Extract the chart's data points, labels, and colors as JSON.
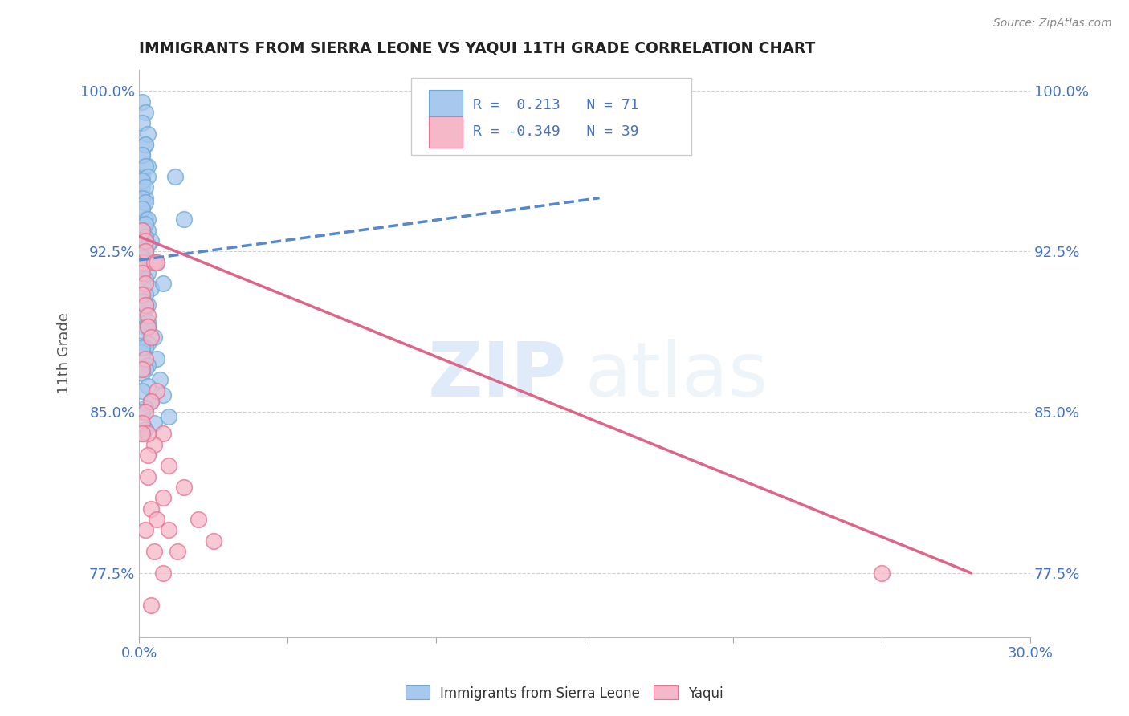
{
  "title": "IMMIGRANTS FROM SIERRA LEONE VS YAQUI 11TH GRADE CORRELATION CHART",
  "source": "Source: ZipAtlas.com",
  "ylabel": "11th Grade",
  "xlim": [
    0.0,
    0.3
  ],
  "ylim": [
    0.745,
    1.01
  ],
  "xticks": [
    0.0,
    0.05,
    0.1,
    0.15,
    0.2,
    0.25,
    0.3
  ],
  "xticklabels_show": [
    "0.0%",
    "",
    "",
    "",
    "",
    "",
    "30.0%"
  ],
  "yticks": [
    0.775,
    0.85,
    0.925,
    1.0
  ],
  "yticklabels": [
    "77.5%",
    "85.0%",
    "92.5%",
    "100.0%"
  ],
  "blue_color": "#a8c8ee",
  "blue_edge_color": "#6aaad4",
  "pink_color": "#f5b8c8",
  "pink_edge_color": "#e87090",
  "blue_line_color": "#5588cc",
  "pink_line_color": "#dd6688",
  "legend_R_blue": " 0.213",
  "legend_N_blue": "71",
  "legend_R_pink": "-0.349",
  "legend_N_pink": "39",
  "legend_label_blue": "Immigrants from Sierra Leone",
  "legend_label_pink": "Yaqui",
  "watermark_zip": "ZIP",
  "watermark_atlas": "atlas",
  "axis_color": "#4472c4",
  "grid_color": "#cccccc",
  "title_color": "#222222",
  "blue_scatter_x": [
    0.001,
    0.002,
    0.001,
    0.003,
    0.001,
    0.002,
    0.001,
    0.002,
    0.003,
    0.004,
    0.001,
    0.002,
    0.001,
    0.003,
    0.002,
    0.001,
    0.002,
    0.003,
    0.001,
    0.002,
    0.001,
    0.002,
    0.001,
    0.003,
    0.002,
    0.001,
    0.002,
    0.001,
    0.003,
    0.002,
    0.001,
    0.002,
    0.001,
    0.003,
    0.002,
    0.001,
    0.004,
    0.002,
    0.001,
    0.003,
    0.002,
    0.001,
    0.003,
    0.002,
    0.001,
    0.005,
    0.003,
    0.002,
    0.001,
    0.006,
    0.003,
    0.002,
    0.001,
    0.007,
    0.003,
    0.001,
    0.008,
    0.004,
    0.002,
    0.001,
    0.01,
    0.005,
    0.002,
    0.001,
    0.012,
    0.006,
    0.002,
    0.001,
    0.015,
    0.008,
    0.003
  ],
  "blue_scatter_y": [
    0.97,
    0.975,
    0.96,
    0.965,
    0.955,
    0.95,
    0.945,
    0.94,
    0.935,
    0.93,
    0.995,
    0.99,
    0.985,
    0.98,
    0.975,
    0.97,
    0.965,
    0.96,
    0.958,
    0.955,
    0.95,
    0.948,
    0.945,
    0.94,
    0.938,
    0.935,
    0.932,
    0.93,
    0.928,
    0.925,
    0.922,
    0.92,
    0.918,
    0.915,
    0.912,
    0.91,
    0.908,
    0.905,
    0.902,
    0.9,
    0.898,
    0.895,
    0.892,
    0.89,
    0.888,
    0.885,
    0.882,
    0.88,
    0.878,
    0.875,
    0.872,
    0.87,
    0.868,
    0.865,
    0.862,
    0.86,
    0.858,
    0.855,
    0.852,
    0.85,
    0.848,
    0.845,
    0.842,
    0.84,
    0.96,
    0.92,
    0.9,
    0.88,
    0.94,
    0.91,
    0.89
  ],
  "pink_scatter_x": [
    0.001,
    0.002,
    0.001,
    0.002,
    0.001,
    0.002,
    0.001,
    0.002,
    0.003,
    0.003,
    0.004,
    0.005,
    0.002,
    0.001,
    0.006,
    0.004,
    0.002,
    0.001,
    0.008,
    0.005,
    0.003,
    0.01,
    0.006,
    0.003,
    0.015,
    0.008,
    0.004,
    0.02,
    0.01,
    0.005,
    0.025,
    0.013,
    0.006,
    0.003,
    0.002,
    0.001,
    0.004,
    0.008,
    0.25
  ],
  "pink_scatter_y": [
    0.935,
    0.93,
    0.92,
    0.925,
    0.915,
    0.91,
    0.905,
    0.9,
    0.895,
    0.89,
    0.885,
    0.92,
    0.875,
    0.87,
    0.86,
    0.855,
    0.85,
    0.845,
    0.84,
    0.835,
    0.83,
    0.825,
    0.92,
    0.82,
    0.815,
    0.81,
    0.805,
    0.8,
    0.795,
    0.785,
    0.79,
    0.785,
    0.8,
    0.84,
    0.795,
    0.84,
    0.76,
    0.775,
    0.775
  ],
  "blue_line_x": [
    0.0,
    0.155
  ],
  "blue_line_y": [
    0.921,
    0.95
  ],
  "pink_line_x": [
    0.0,
    0.28
  ],
  "pink_line_y": [
    0.932,
    0.775
  ]
}
